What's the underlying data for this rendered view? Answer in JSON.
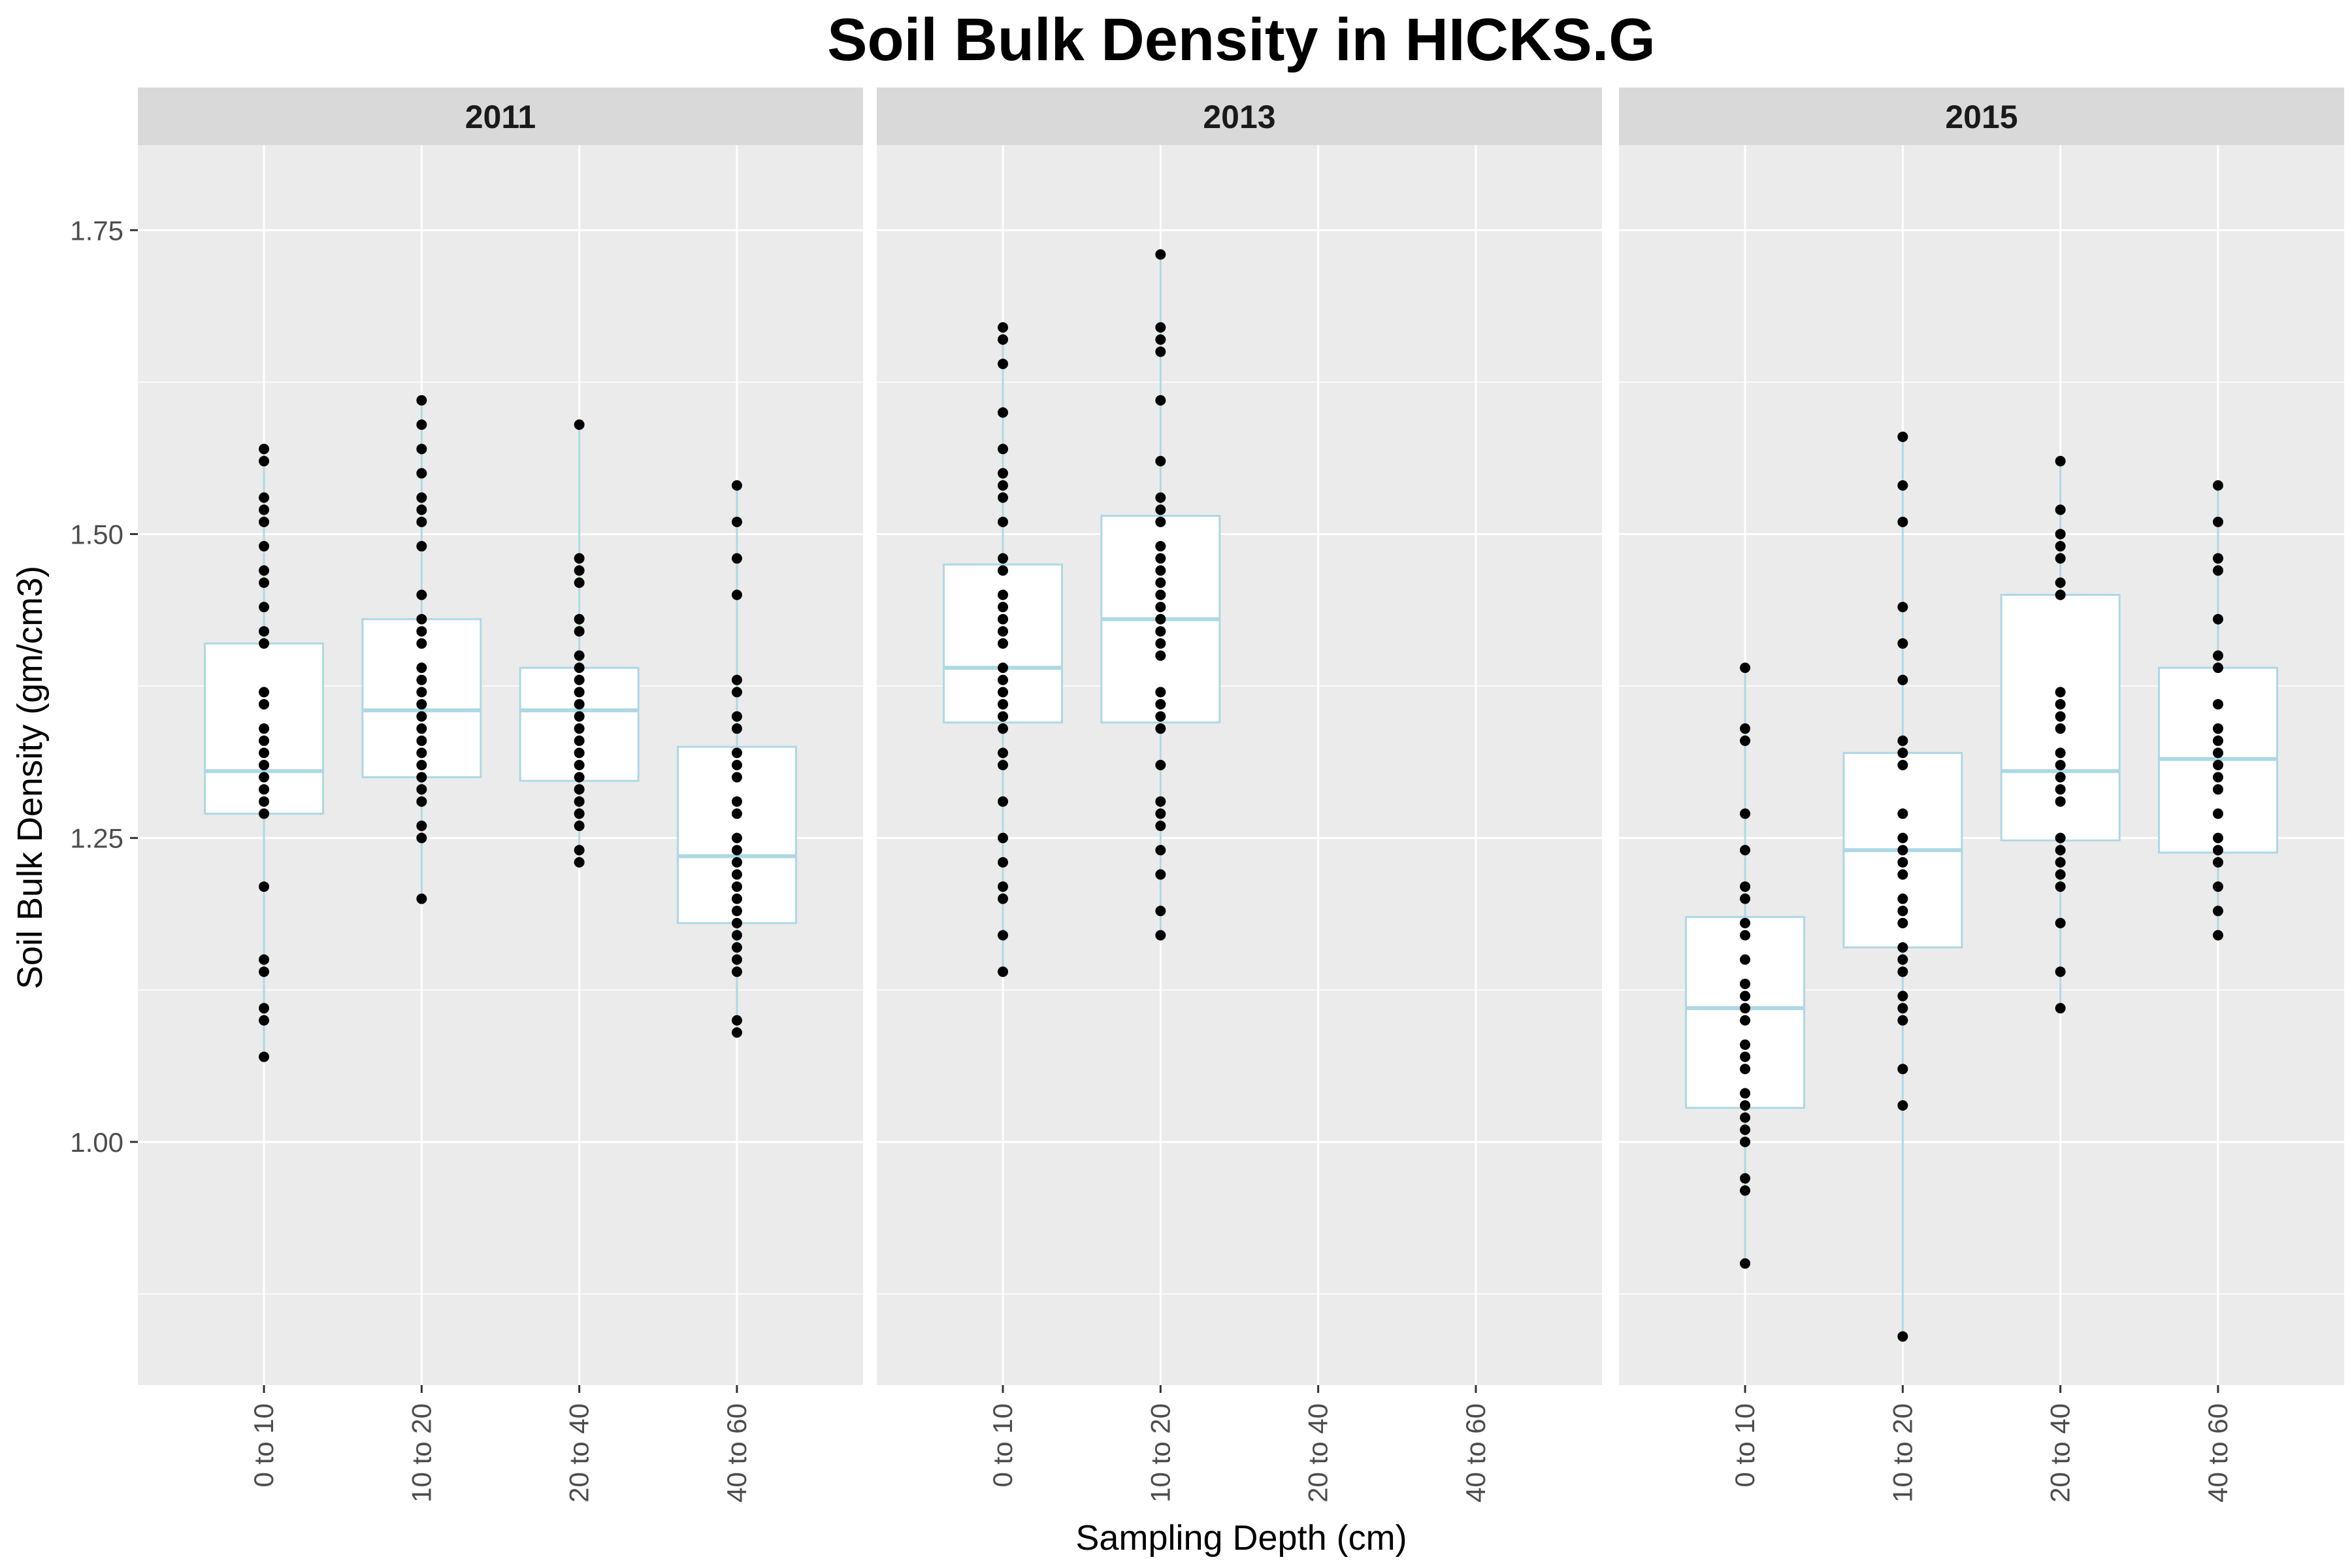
{
  "chart_data": {
    "type": "box",
    "title": "Soil Bulk Density in HICKS.G",
    "xlabel": "Sampling Depth (cm)",
    "ylabel": "Soil Bulk Density (gm/cm3)",
    "ylim": [
      0.8,
      1.82
    ],
    "y_ticks": [
      1.0,
      1.25,
      1.5,
      1.75
    ],
    "y_tick_labels": [
      "1.00",
      "1.25",
      "1.50",
      "1.75"
    ],
    "categories": [
      "0 to 10",
      "10 to 20",
      "20 to 40",
      "40 to 60"
    ],
    "grid": true,
    "colors": {
      "panel_bg": "#ebebeb",
      "strip_bg": "#d9d9d9",
      "grid": "#ffffff",
      "box_line": "#add8e6",
      "box_fill": "#ffffff",
      "point": "#000000"
    },
    "facets": [
      {
        "label": "2011",
        "boxes": [
          {
            "category": "0 to 10",
            "min": 1.07,
            "q1": 1.27,
            "median": 1.305,
            "q3": 1.41,
            "max": 1.57,
            "points": [
              1.57,
              1.56,
              1.53,
              1.52,
              1.51,
              1.49,
              1.47,
              1.46,
              1.44,
              1.42,
              1.41,
              1.37,
              1.36,
              1.34,
              1.33,
              1.32,
              1.31,
              1.3,
              1.29,
              1.28,
              1.27,
              1.21,
              1.15,
              1.14,
              1.11,
              1.1,
              1.07
            ]
          },
          {
            "category": "10 to 20",
            "min": 1.2,
            "q1": 1.3,
            "median": 1.355,
            "q3": 1.43,
            "max": 1.61,
            "points": [
              1.61,
              1.59,
              1.57,
              1.55,
              1.53,
              1.52,
              1.51,
              1.49,
              1.45,
              1.43,
              1.42,
              1.41,
              1.39,
              1.38,
              1.37,
              1.36,
              1.35,
              1.34,
              1.33,
              1.32,
              1.31,
              1.3,
              1.29,
              1.28,
              1.26,
              1.25,
              1.2
            ]
          },
          {
            "category": "20 to 40",
            "min": 1.23,
            "q1": 1.297,
            "median": 1.355,
            "q3": 1.39,
            "max": 1.59,
            "points": [
              1.59,
              1.48,
              1.47,
              1.46,
              1.43,
              1.42,
              1.4,
              1.39,
              1.38,
              1.37,
              1.36,
              1.35,
              1.34,
              1.33,
              1.32,
              1.31,
              1.3,
              1.29,
              1.28,
              1.27,
              1.26,
              1.24,
              1.23
            ]
          },
          {
            "category": "40 to 60",
            "min": 1.09,
            "q1": 1.18,
            "median": 1.235,
            "q3": 1.325,
            "max": 1.54,
            "points": [
              1.54,
              1.51,
              1.48,
              1.45,
              1.38,
              1.37,
              1.35,
              1.34,
              1.32,
              1.31,
              1.3,
              1.28,
              1.27,
              1.25,
              1.24,
              1.23,
              1.22,
              1.21,
              1.2,
              1.19,
              1.18,
              1.17,
              1.16,
              1.15,
              1.14,
              1.1,
              1.09
            ]
          }
        ]
      },
      {
        "label": "2013",
        "boxes": [
          {
            "category": "0 to 10",
            "min": 1.14,
            "q1": 1.345,
            "median": 1.39,
            "q3": 1.475,
            "max": 1.67,
            "points": [
              1.67,
              1.66,
              1.64,
              1.6,
              1.57,
              1.55,
              1.54,
              1.53,
              1.51,
              1.48,
              1.47,
              1.45,
              1.44,
              1.43,
              1.42,
              1.41,
              1.39,
              1.38,
              1.37,
              1.36,
              1.35,
              1.34,
              1.32,
              1.31,
              1.28,
              1.25,
              1.23,
              1.21,
              1.2,
              1.17,
              1.14
            ]
          },
          {
            "category": "10 to 20",
            "min": 1.17,
            "q1": 1.345,
            "median": 1.43,
            "q3": 1.515,
            "max": 1.73,
            "points": [
              1.73,
              1.67,
              1.66,
              1.65,
              1.61,
              1.56,
              1.53,
              1.52,
              1.51,
              1.49,
              1.48,
              1.47,
              1.46,
              1.45,
              1.44,
              1.43,
              1.42,
              1.41,
              1.4,
              1.37,
              1.36,
              1.35,
              1.34,
              1.31,
              1.28,
              1.27,
              1.26,
              1.24,
              1.22,
              1.19,
              1.17
            ]
          }
        ]
      },
      {
        "label": "2015",
        "boxes": [
          {
            "category": "0 to 10",
            "min": 0.9,
            "q1": 1.028,
            "median": 1.11,
            "q3": 1.185,
            "max": 1.39,
            "points": [
              1.39,
              1.34,
              1.33,
              1.27,
              1.24,
              1.21,
              1.2,
              1.18,
              1.17,
              1.15,
              1.13,
              1.12,
              1.11,
              1.1,
              1.08,
              1.07,
              1.06,
              1.04,
              1.03,
              1.02,
              1.01,
              1.0,
              0.97,
              0.96,
              0.9
            ]
          },
          {
            "category": "10 to 20",
            "min": 0.84,
            "q1": 1.16,
            "median": 1.24,
            "q3": 1.32,
            "max": 1.58,
            "points": [
              1.58,
              1.54,
              1.51,
              1.44,
              1.41,
              1.38,
              1.33,
              1.32,
              1.31,
              1.27,
              1.25,
              1.24,
              1.23,
              1.22,
              1.2,
              1.19,
              1.18,
              1.16,
              1.15,
              1.14,
              1.12,
              1.11,
              1.1,
              1.06,
              1.03,
              0.84
            ]
          },
          {
            "category": "20 to 40",
            "min": 1.11,
            "q1": 1.248,
            "median": 1.305,
            "q3": 1.45,
            "max": 1.56,
            "points": [
              1.56,
              1.52,
              1.5,
              1.49,
              1.48,
              1.46,
              1.45,
              1.37,
              1.36,
              1.35,
              1.34,
              1.32,
              1.31,
              1.3,
              1.29,
              1.28,
              1.25,
              1.24,
              1.23,
              1.22,
              1.21,
              1.18,
              1.14,
              1.11
            ]
          },
          {
            "category": "40 to 60",
            "min": 1.17,
            "q1": 1.238,
            "median": 1.315,
            "q3": 1.39,
            "max": 1.54,
            "points": [
              1.54,
              1.51,
              1.48,
              1.47,
              1.43,
              1.4,
              1.39,
              1.36,
              1.34,
              1.33,
              1.32,
              1.31,
              1.3,
              1.29,
              1.27,
              1.25,
              1.24,
              1.23,
              1.21,
              1.19,
              1.17
            ]
          }
        ]
      }
    ]
  }
}
